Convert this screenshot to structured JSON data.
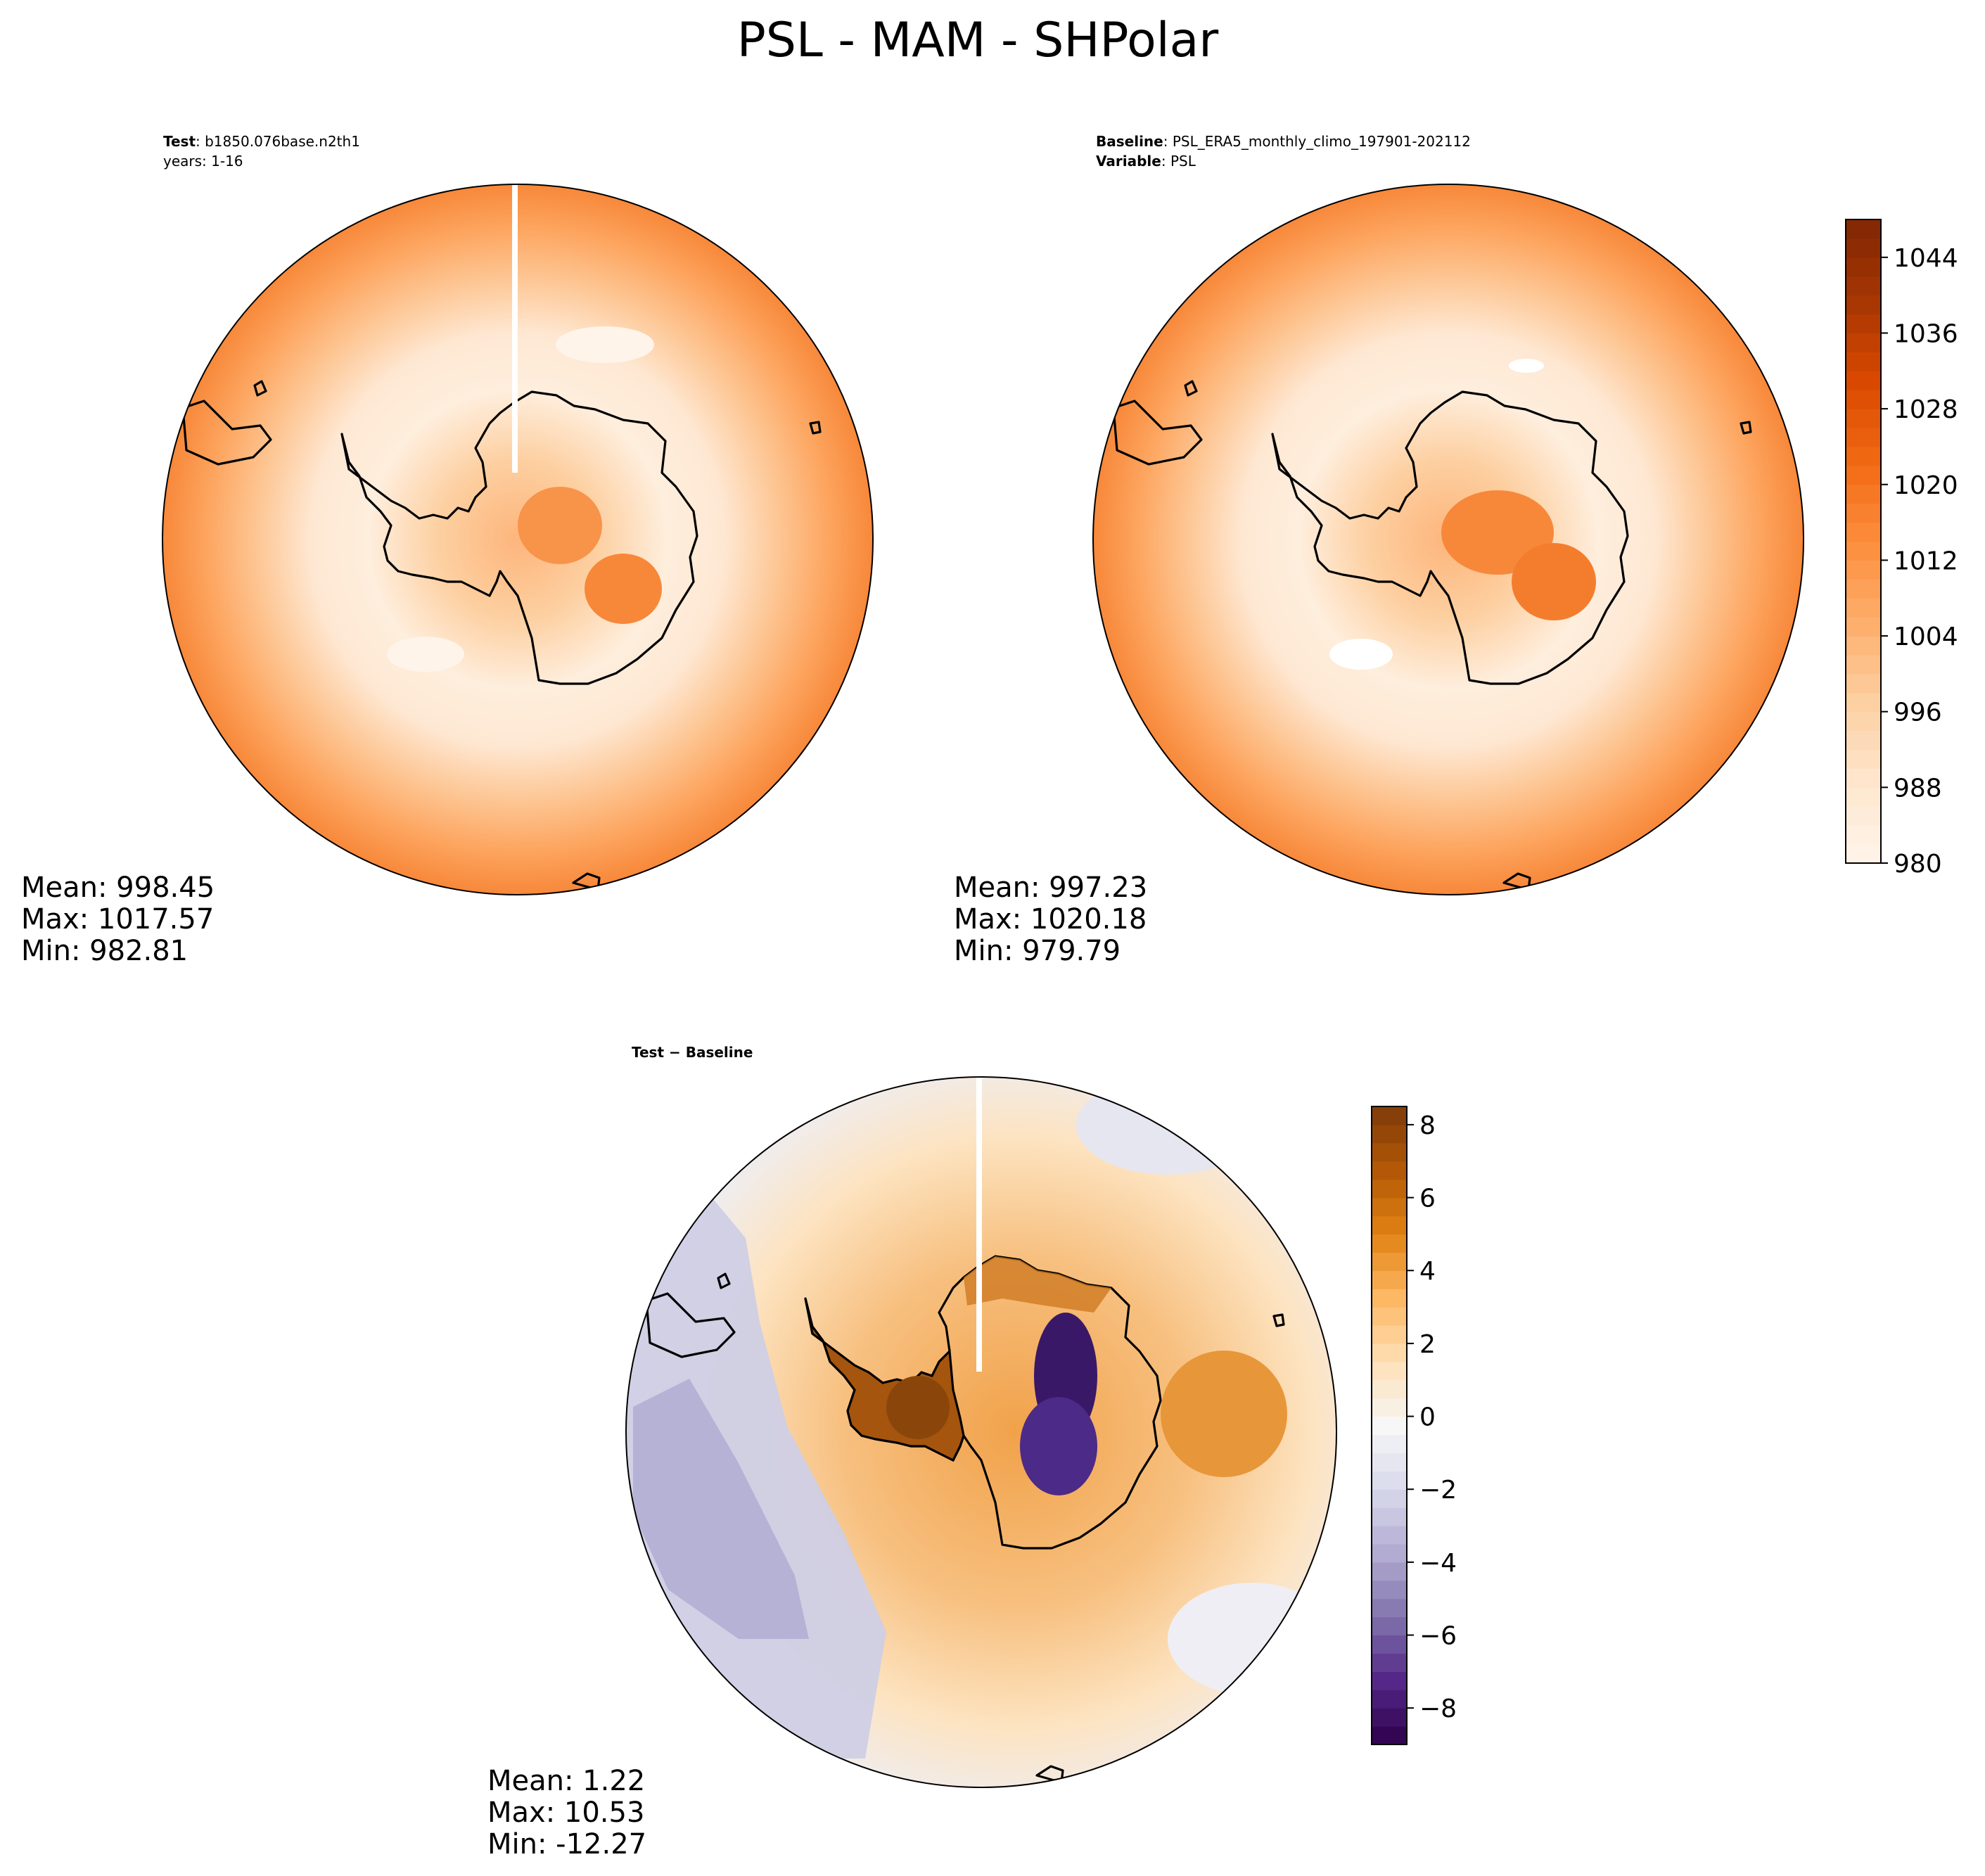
{
  "title": "PSL - MAM - SHPolar",
  "panels": [
    {
      "id": "test",
      "label_lines": [
        {
          "key": "Test",
          "value": ": b1850.076base.n2th1"
        },
        {
          "key": "",
          "value": "years: 1-16"
        }
      ],
      "stats": {
        "mean": "Mean: 998.45",
        "max": "Max: 1017.57",
        "min": "Min: 982.81"
      }
    },
    {
      "id": "baseline",
      "label_lines": [
        {
          "key": "Baseline",
          "value": ": PSL_ERA5_monthly_climo_197901-202112"
        },
        {
          "key": "Variable",
          "value": ": PSL"
        }
      ],
      "stats": {
        "mean": "Mean: 997.23",
        "max": "Max: 1020.18",
        "min": "Min: 979.79"
      }
    },
    {
      "id": "diff",
      "label_lines": [
        {
          "key": "Test − Baseline",
          "value": ""
        }
      ],
      "stats": {
        "mean": "Mean:  1.22",
        "max": "Max: 10.53",
        "min": "Min: -12.27"
      }
    }
  ],
  "colorbars": [
    {
      "id": "psl",
      "colormap": "Oranges",
      "range": [
        980,
        1048
      ],
      "ticks": [
        "980",
        "988",
        "996",
        "1004",
        "1012",
        "1020",
        "1028",
        "1036",
        "1044"
      ],
      "tick_values": [
        980,
        988,
        996,
        1004,
        1012,
        1020,
        1028,
        1036,
        1044
      ],
      "levels": 34,
      "colors": [
        "#fff5eb",
        "#fee6ce",
        "#fdd0a2",
        "#fdae6b",
        "#fd8d3c",
        "#f16913",
        "#d94801",
        "#a63603",
        "#7f2704"
      ]
    },
    {
      "id": "diff",
      "colormap": "PuOr_r",
      "range": [
        -9,
        8.5
      ],
      "ticks": [
        "−8",
        "−6",
        "−4",
        "−2",
        "0",
        "2",
        "4",
        "6",
        "8"
      ],
      "tick_values": [
        -8,
        -6,
        -4,
        -2,
        0,
        2,
        4,
        6,
        8
      ],
      "levels": 35,
      "colors": [
        "#2d004b",
        "#542788",
        "#8073ac",
        "#b2abd2",
        "#d8daeb",
        "#f7f7f7",
        "#fee0b6",
        "#fdb863",
        "#e08214",
        "#b35806",
        "#7f3b08"
      ]
    }
  ],
  "chart_data": [
    {
      "type": "heatmap",
      "projection": "south-polar-stereographic",
      "variable": "PSL",
      "title": "Test: b1850.076base.n2th1 years: 1-16",
      "value_range": [
        982.81,
        1017.57
      ],
      "mean": 998.45
    },
    {
      "type": "heatmap",
      "projection": "south-polar-stereographic",
      "variable": "PSL",
      "title": "Baseline: PSL_ERA5_monthly_climo_197901-202112",
      "value_range": [
        979.79,
        1020.18
      ],
      "mean": 997.23
    },
    {
      "type": "heatmap",
      "projection": "south-polar-stereographic",
      "variable": "PSL",
      "title": "Test − Baseline",
      "value_range": [
        -12.27,
        10.53
      ],
      "mean": 1.22
    }
  ]
}
